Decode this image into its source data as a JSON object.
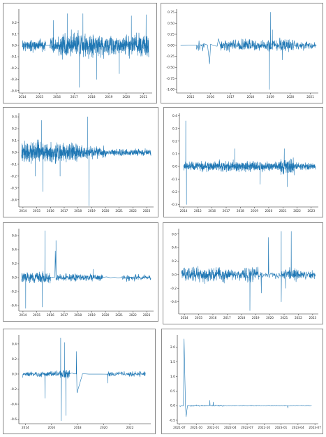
{
  "chart_data": [
    {
      "type": "line",
      "x_ticks": [
        "2014",
        "2015",
        "2016",
        "2017",
        "2018",
        "2019",
        "2020",
        "2021"
      ],
      "y_ticks": [
        "0.2",
        "0.1",
        "0.0",
        "-0.1",
        "-0.2",
        "-0.3",
        "-0.4"
      ],
      "xlim": [
        2013.8,
        2021.5
      ],
      "ylim": [
        -0.42,
        0.32
      ],
      "color": "#1f77b4",
      "segments": [
        {
          "x0": 2014.0,
          "x1": 2015.35,
          "n": 170,
          "amp": 0.07,
          "seed": 11
        },
        {
          "x0": 2015.35,
          "x1": 2015.6,
          "n": 2,
          "amp": 0,
          "seed": 1
        },
        {
          "x0": 2015.6,
          "x1": 2016.2,
          "n": 70,
          "amp": 0.1,
          "seed": 12
        },
        {
          "x0": 2016.2,
          "x1": 2017.0,
          "n": 110,
          "amp": 0.16,
          "seed": 13
        },
        {
          "x0": 2017.0,
          "x1": 2018.0,
          "n": 130,
          "amp": 0.15,
          "seed": 14
        },
        {
          "x0": 2018.0,
          "x1": 2019.4,
          "n": 170,
          "amp": 0.13,
          "seed": 15
        },
        {
          "x0": 2019.4,
          "x1": 2020.6,
          "n": 150,
          "amp": 0.12,
          "seed": 16
        },
        {
          "x0": 2020.6,
          "x1": 2021.3,
          "n": 90,
          "amp": 0.15,
          "seed": 17
        }
      ],
      "spikes": [
        [
          2016.6,
          0.28
        ],
        [
          2017.3,
          -0.37
        ],
        [
          2017.5,
          0.28
        ],
        [
          2018.3,
          -0.3
        ],
        [
          2020.3,
          0.26
        ],
        [
          2021.15,
          0.27
        ],
        [
          2015.8,
          0.22
        ],
        [
          2019.6,
          -0.25
        ]
      ]
    },
    {
      "type": "line",
      "x_ticks": [
        "2015",
        "2016",
        "2017",
        "2018",
        "2019",
        "2020",
        "2021"
      ],
      "y_ticks": [
        "0.75",
        "0.50",
        "0.25",
        "0.00",
        "-0.25",
        "-0.50",
        "-0.75",
        "-1.00"
      ],
      "xlim": [
        2014.3,
        2021.4
      ],
      "ylim": [
        -1.08,
        0.82
      ],
      "color": "#1f77b4",
      "segments": [
        {
          "x0": 2014.5,
          "x1": 2015.3,
          "n": 4,
          "amp": 0.01,
          "seed": 21
        },
        {
          "x0": 2015.3,
          "x1": 2015.7,
          "n": 14,
          "amp": 0.15,
          "seed": 22
        },
        {
          "x0": 2015.7,
          "x1": 2016.0,
          "n": 3,
          "amp": 0.05,
          "seed": 23
        },
        {
          "x0": 2016.0,
          "x1": 2016.5,
          "n": 4,
          "amp": 0.05,
          "seed": 24
        },
        {
          "x0": 2016.5,
          "x1": 2018.0,
          "n": 150,
          "amp": 0.18,
          "seed": 25
        },
        {
          "x0": 2018.0,
          "x1": 2019.0,
          "n": 100,
          "amp": 0.17,
          "seed": 26
        },
        {
          "x0": 2019.0,
          "x1": 2020.2,
          "n": 120,
          "amp": 0.19,
          "seed": 27
        },
        {
          "x0": 2020.2,
          "x1": 2021.3,
          "n": 80,
          "amp": 0.14,
          "seed": 28
        }
      ],
      "spikes": [
        [
          2015.95,
          -0.42
        ],
        [
          2016.4,
          0.15
        ],
        [
          2019.0,
          0.75
        ],
        [
          2018.95,
          -1.0
        ],
        [
          2019.6,
          -0.33
        ],
        [
          2019.1,
          0.35
        ]
      ]
    },
    {
      "type": "line",
      "x_ticks": [
        "2014",
        "2015",
        "2016",
        "2017",
        "2018",
        "2019",
        "2020",
        "2021",
        "2022",
        "2023"
      ],
      "y_ticks": [
        "0.3",
        "0.2",
        "0.1",
        "0.0",
        "-0.1",
        "-0.2",
        "-0.3",
        "-0.4"
      ],
      "xlim": [
        2013.7,
        2023.5
      ],
      "ylim": [
        -0.46,
        0.33
      ],
      "color": "#1f77b4",
      "segments": [
        {
          "x0": 2013.9,
          "x1": 2016.0,
          "n": 260,
          "amp": 0.12,
          "seed": 31
        },
        {
          "x0": 2016.0,
          "x1": 2018.0,
          "n": 240,
          "amp": 0.11,
          "seed": 32
        },
        {
          "x0": 2018.0,
          "x1": 2020.0,
          "n": 220,
          "amp": 0.07,
          "seed": 33
        },
        {
          "x0": 2020.0,
          "x1": 2023.3,
          "n": 300,
          "amp": 0.04,
          "seed": 34
        }
      ],
      "spikes": [
        [
          2015.35,
          0.27
        ],
        [
          2015.45,
          -0.33
        ],
        [
          2018.7,
          0.3
        ],
        [
          2018.8,
          -0.45
        ],
        [
          2014.9,
          -0.2
        ],
        [
          2016.7,
          -0.2
        ]
      ]
    },
    {
      "type": "line",
      "x_ticks": [
        "2014",
        "2015",
        "2016",
        "2017",
        "2018",
        "2019",
        "2020",
        "2021",
        "2022",
        "2023"
      ],
      "y_ticks": [
        "0.4",
        "0.3",
        "0.2",
        "0.1",
        "0.0",
        "-0.1",
        "-0.2",
        "-0.3"
      ],
      "xlim": [
        2013.7,
        2023.5
      ],
      "ylim": [
        -0.32,
        0.42
      ],
      "color": "#1f77b4",
      "segments": [
        {
          "x0": 2014.0,
          "x1": 2016.5,
          "n": 300,
          "amp": 0.05,
          "seed": 41
        },
        {
          "x0": 2016.5,
          "x1": 2019.0,
          "n": 280,
          "amp": 0.06,
          "seed": 42
        },
        {
          "x0": 2019.0,
          "x1": 2020.8,
          "n": 200,
          "amp": 0.05,
          "seed": 43
        },
        {
          "x0": 2020.8,
          "x1": 2021.8,
          "n": 120,
          "amp": 0.09,
          "seed": 44
        },
        {
          "x0": 2021.8,
          "x1": 2023.3,
          "n": 170,
          "amp": 0.04,
          "seed": 45
        }
      ],
      "spikes": [
        [
          2014.15,
          0.36
        ],
        [
          2014.2,
          -0.3
        ],
        [
          2017.6,
          0.14
        ],
        [
          2021.1,
          0.14
        ],
        [
          2021.3,
          -0.16
        ],
        [
          2019.4,
          -0.14
        ]
      ]
    },
    {
      "type": "line",
      "x_ticks": [
        "2014",
        "2015",
        "2016",
        "2017",
        "2018",
        "2019",
        "2020",
        "2021",
        "2022",
        "2023"
      ],
      "y_ticks": [
        "0.6",
        "0.4",
        "0.2",
        "0.0",
        "-0.2",
        "-0.4"
      ],
      "xlim": [
        2013.7,
        2023.5
      ],
      "ylim": [
        -0.48,
        0.7
      ],
      "color": "#1f77b4",
      "segments": [
        {
          "x0": 2013.9,
          "x1": 2016.0,
          "n": 180,
          "amp": 0.11,
          "seed": 51
        },
        {
          "x0": 2016.0,
          "x1": 2016.4,
          "n": 6,
          "amp": 0.02,
          "seed": 52
        },
        {
          "x0": 2016.4,
          "x1": 2019.8,
          "n": 260,
          "amp": 0.07,
          "seed": 53
        },
        {
          "x0": 2019.8,
          "x1": 2021.2,
          "n": 6,
          "amp": 0.02,
          "seed": 54
        },
        {
          "x0": 2021.2,
          "x1": 2022.3,
          "n": 50,
          "amp": 0.07,
          "seed": 55
        },
        {
          "x0": 2022.3,
          "x1": 2023.3,
          "n": 60,
          "amp": 0.05,
          "seed": 56
        }
      ],
      "spikes": [
        [
          2015.6,
          0.67
        ],
        [
          2015.4,
          -0.42
        ],
        [
          2016.35,
          0.38
        ],
        [
          2016.4,
          0.53
        ],
        [
          2014.2,
          -0.44
        ],
        [
          2019.1,
          0.12
        ]
      ]
    },
    {
      "type": "line",
      "x_ticks": [
        "2014",
        "2015",
        "2016",
        "2017",
        "2018",
        "2019",
        "2020",
        "2021",
        "2022",
        "2023"
      ],
      "y_ticks": [
        "0.6",
        "0.4",
        "0.2",
        "0.0",
        "-0.2",
        "-0.4"
      ],
      "xlim": [
        2013.6,
        2023.4
      ],
      "ylim": [
        -0.58,
        0.68
      ],
      "color": "#1f77b4",
      "segments": [
        {
          "x0": 2013.8,
          "x1": 2017.5,
          "n": 320,
          "amp": 0.15,
          "seed": 61
        },
        {
          "x0": 2017.5,
          "x1": 2018.2,
          "n": 40,
          "amp": 0.1,
          "seed": 62
        },
        {
          "x0": 2018.2,
          "x1": 2019.2,
          "n": 70,
          "amp": 0.16,
          "seed": 63
        },
        {
          "x0": 2019.2,
          "x1": 2020.2,
          "n": 30,
          "amp": 0.06,
          "seed": 64
        },
        {
          "x0": 2020.2,
          "x1": 2021.0,
          "n": 40,
          "amp": 0.09,
          "seed": 65
        },
        {
          "x0": 2021.0,
          "x1": 2022.0,
          "n": 50,
          "amp": 0.12,
          "seed": 66
        },
        {
          "x0": 2022.0,
          "x1": 2023.2,
          "n": 90,
          "amp": 0.08,
          "seed": 67
        }
      ],
      "spikes": [
        [
          2018.6,
          -0.53
        ],
        [
          2019.9,
          0.55
        ],
        [
          2020.8,
          0.64
        ],
        [
          2020.8,
          -0.4
        ],
        [
          2021.5,
          0.64
        ],
        [
          2019.4,
          -0.27
        ],
        [
          2021.1,
          -0.2
        ]
      ]
    },
    {
      "type": "line",
      "x_ticks": [
        "2014",
        "2016",
        "2018",
        "2020",
        "2022"
      ],
      "y_ticks": [
        "0.4",
        "0.2",
        "0.0",
        "-0.2",
        "-0.4",
        "-0.6"
      ],
      "xlim": [
        2013.5,
        2023.6
      ],
      "ylim": [
        -0.66,
        0.52
      ],
      "color": "#1f77b4",
      "segments": [
        {
          "x0": 2013.8,
          "x1": 2016.6,
          "n": 160,
          "amp": 0.05,
          "seed": 71
        },
        {
          "x0": 2016.6,
          "x1": 2017.4,
          "n": 60,
          "amp": 0.09,
          "seed": 72
        },
        {
          "x0": 2017.4,
          "x1": 2017.9,
          "n": 4,
          "amp": 0.02,
          "seed": 73
        },
        {
          "x0": 2017.9,
          "x1": 2020.3,
          "n": 6,
          "amp": 0.01,
          "seed": 74
        },
        {
          "x0": 2020.3,
          "x1": 2023.2,
          "n": 150,
          "amp": 0.05,
          "seed": 75
        }
      ],
      "spikes": [
        [
          2016.7,
          0.48
        ],
        [
          2016.75,
          -0.62
        ],
        [
          2017.0,
          0.42
        ],
        [
          2017.1,
          -0.55
        ],
        [
          2017.9,
          0.3
        ],
        [
          2017.95,
          -0.25
        ],
        [
          2015.5,
          -0.32
        ],
        [
          2020.3,
          -0.12
        ]
      ]
    },
    {
      "type": "line",
      "x_ticks": [
        "2021-07",
        "2021-10",
        "2022-01",
        "2022-04",
        "2022-07",
        "2022-10",
        "2023-01",
        "2023-04",
        "2023-07"
      ],
      "y_ticks": [
        "2.0",
        "1.5",
        "1.0",
        "0.5",
        "0.0",
        "-0.5"
      ],
      "x_numeric": [
        2021.5,
        2021.75,
        2022.0,
        2022.25,
        2022.5,
        2022.75,
        2023.0,
        2023.25,
        2023.5
      ],
      "xlim": [
        2021.47,
        2023.55
      ],
      "ylim": [
        -0.62,
        2.42
      ],
      "color": "#1f77b4",
      "segments": [
        {
          "x0": 2021.5,
          "x1": 2021.56,
          "n": 8,
          "amp": 0.06,
          "seed": 81
        },
        {
          "x0": 2021.56,
          "x1": 2021.62,
          "n": 3,
          "amp": 0.02,
          "seed": 82
        },
        {
          "x0": 2021.62,
          "x1": 2022.15,
          "n": 90,
          "amp": 0.04,
          "seed": 83
        },
        {
          "x0": 2022.15,
          "x1": 2023.45,
          "n": 180,
          "amp": 0.02,
          "seed": 84
        }
      ],
      "spikes": [
        [
          2021.57,
          2.28
        ],
        [
          2021.6,
          -0.38
        ],
        [
          2021.95,
          0.18
        ],
        [
          2022.0,
          0.12
        ],
        [
          2023.1,
          -0.08
        ]
      ]
    }
  ]
}
